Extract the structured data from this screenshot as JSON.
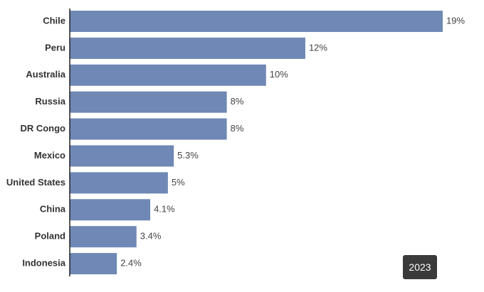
{
  "chart_data": {
    "type": "bar",
    "orientation": "horizontal",
    "categories": [
      "Chile",
      "Peru",
      "Australia",
      "Russia",
      "DR Congo",
      "Mexico",
      "United States",
      "China",
      "Poland",
      "Indonesia"
    ],
    "values": [
      19,
      12,
      10,
      8,
      8,
      5.3,
      5,
      4.1,
      3.4,
      2.4
    ],
    "value_labels": [
      "19%",
      "12%",
      "10%",
      "8%",
      "8%",
      "5.3%",
      "5%",
      "4.1%",
      "3.4%",
      "2.4%"
    ],
    "unit": "%",
    "xlim": [
      0,
      19
    ],
    "title": "",
    "xlabel": "",
    "ylabel": "",
    "grid": false,
    "legend": "none",
    "bar_color": "#6f88b5",
    "label_color": "#333333",
    "value_label_color": "#444444",
    "axis_color": "#222222"
  },
  "badge": {
    "label": "2023",
    "background": "#3a3a3a",
    "text_color": "#ffffff"
  }
}
